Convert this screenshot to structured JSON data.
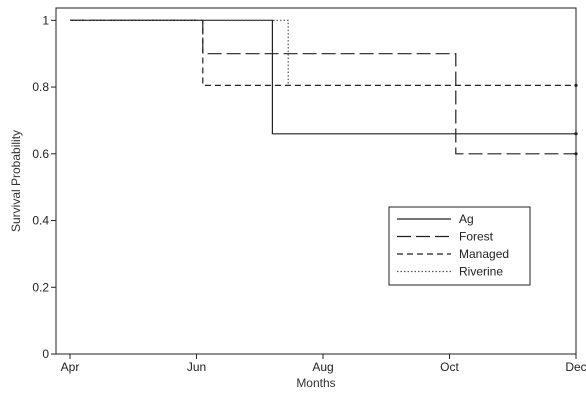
{
  "chart_data": {
    "type": "line",
    "xlabel": "Months",
    "ylabel": "Survival Probability",
    "x_ticks": [
      {
        "label": "Apr",
        "value": 0
      },
      {
        "label": "Jun",
        "value": 2
      },
      {
        "label": "Aug",
        "value": 4
      },
      {
        "label": "Oct",
        "value": 6
      },
      {
        "label": "Dec",
        "value": 8
      }
    ],
    "y_ticks": [
      {
        "label": "0",
        "value": 0
      },
      {
        "label": "0.2",
        "value": 0.2
      },
      {
        "label": "0.4",
        "value": 0.4
      },
      {
        "label": "0.6",
        "value": 0.6
      },
      {
        "label": "0.8",
        "value": 0.8
      },
      {
        "label": "1",
        "value": 1
      }
    ],
    "xlim": [
      0,
      8
    ],
    "ylim": [
      0,
      1.01
    ],
    "legend_position": "center-right",
    "series": [
      {
        "name": "Ag",
        "dash": "solid",
        "end_marker": true,
        "points": [
          [
            0,
            1.0
          ],
          [
            3.2,
            1.0
          ],
          [
            3.2,
            0.66
          ],
          [
            8,
            0.66
          ]
        ]
      },
      {
        "name": "Forest",
        "dash": "long-dash",
        "end_marker": true,
        "points": [
          [
            0,
            1.0
          ],
          [
            2.1,
            1.0
          ],
          [
            2.1,
            0.9
          ],
          [
            6.1,
            0.9
          ],
          [
            6.1,
            0.6
          ],
          [
            8,
            0.6
          ]
        ]
      },
      {
        "name": "Managed",
        "dash": "short-dash",
        "end_marker": true,
        "points": [
          [
            0,
            1.0
          ],
          [
            2.1,
            1.0
          ],
          [
            2.1,
            0.805
          ],
          [
            8,
            0.805
          ]
        ]
      },
      {
        "name": "Riverine",
        "dash": "dotted",
        "end_marker": false,
        "points": [
          [
            0,
            1.0
          ],
          [
            3.45,
            1.0
          ],
          [
            3.45,
            0.805
          ]
        ]
      }
    ]
  }
}
